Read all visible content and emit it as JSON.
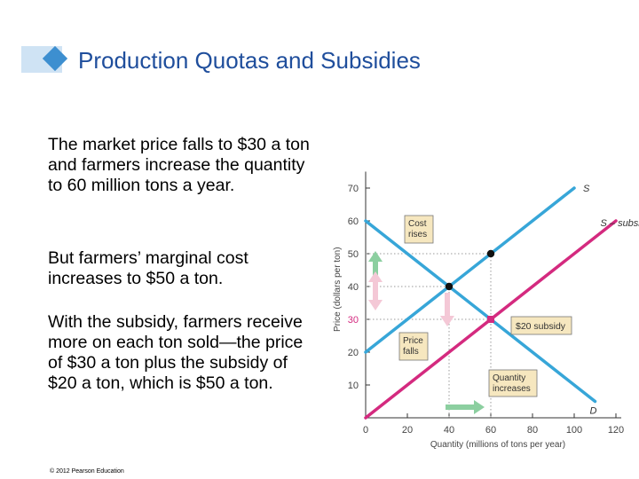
{
  "slide": {
    "title": "Production Quotas and Subsidies",
    "paragraphs": [
      "The market price falls to $30 a ton and farmers increase the quantity to 60 million tons a year.",
      "But farmers’ marginal cost increases to $50 a ton.",
      "With the subsidy, farmers receive more on each ton sold—the price of $30 a ton plus the subsidy of $20 a ton, which is $50 a ton."
    ],
    "copyright": "© 2012 Pearson Education"
  },
  "colors": {
    "title": "#1f4e9c",
    "supply": "#37a6d8",
    "subsidy_supply": "#d42a7f",
    "demand": "#37a6d8",
    "arrow": "#8ccfa0",
    "price_falls_arrow": "#f4c8d6",
    "label_box_fill": "#f6e7bf",
    "new_price_label": "#d42a7f"
  },
  "chart_data": {
    "type": "line",
    "xlabel": "Quantity (millions of tons per year)",
    "ylabel": "Price (dollars per ton)",
    "xlim": [
      0,
      120
    ],
    "ylim": [
      0,
      75
    ],
    "xticks": [
      0,
      20,
      40,
      60,
      80,
      100,
      120
    ],
    "yticks": [
      10,
      20,
      30,
      40,
      50,
      60,
      70
    ],
    "highlight_ytick": 30,
    "series": [
      {
        "name": "S",
        "style": "supply",
        "x": [
          0,
          100
        ],
        "y": [
          20,
          70
        ]
      },
      {
        "name": "S – subsidy",
        "style": "subsidy_supply",
        "x": [
          0,
          120
        ],
        "y": [
          0,
          60
        ]
      },
      {
        "name": "D",
        "style": "demand",
        "x": [
          0,
          110
        ],
        "y": [
          60,
          5
        ]
      }
    ],
    "points": [
      {
        "x": 40,
        "y": 40,
        "style": "black"
      },
      {
        "x": 60,
        "y": 50,
        "style": "black"
      },
      {
        "x": 60,
        "y": 30,
        "style": "magenta"
      }
    ],
    "annotations": [
      {
        "name": "cost-rises",
        "text": "Cost rises"
      },
      {
        "name": "price-falls",
        "text": "Price falls"
      },
      {
        "name": "subsidy",
        "text": "$20 subsidy"
      },
      {
        "name": "quantity-increases",
        "text": "Quantity increases"
      }
    ]
  }
}
